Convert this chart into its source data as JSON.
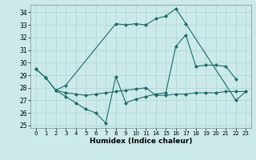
{
  "bg_color": "#cceaea",
  "grid_color": "#b0d8d8",
  "line_color": "#1a6b6b",
  "marker": "D",
  "markersize": 2.0,
  "linewidth": 0.8,
  "xlabel": "Humidex (Indice chaleur)",
  "xlim": [
    -0.5,
    21.5
  ],
  "ylim": [
    24.8,
    34.6
  ],
  "yticks": [
    25,
    26,
    27,
    28,
    29,
    30,
    31,
    32,
    33,
    34
  ],
  "xtick_positions": [
    0,
    1,
    2,
    3,
    4,
    5,
    6,
    7,
    8,
    9,
    10,
    11,
    12,
    13,
    14,
    15,
    16,
    17,
    18,
    19,
    20,
    21
  ],
  "xtick_labels": [
    "0",
    "1",
    "2",
    "3",
    "4",
    "5",
    "6",
    "7",
    "8",
    "9",
    "10",
    "11",
    "14",
    "15",
    "16",
    "17",
    "18",
    "19",
    "20",
    "21",
    "22",
    "23"
  ],
  "series": [
    {
      "x": [
        0,
        1,
        2,
        3,
        8,
        9,
        10,
        11,
        12,
        13,
        14,
        15,
        20,
        21
      ],
      "y": [
        29.5,
        28.8,
        27.8,
        28.2,
        33.1,
        33.0,
        33.1,
        33.0,
        33.5,
        33.7,
        34.3,
        33.1,
        27.0,
        27.7
      ]
    },
    {
      "x": [
        0,
        1,
        2,
        3,
        4,
        5,
        6,
        7,
        8,
        9,
        10,
        11,
        12,
        13,
        14,
        15,
        16,
        17,
        18,
        19,
        20
      ],
      "y": [
        29.5,
        28.8,
        27.8,
        27.3,
        26.8,
        26.3,
        26.0,
        25.2,
        28.9,
        26.8,
        27.1,
        27.3,
        27.5,
        27.6,
        31.3,
        32.2,
        29.7,
        29.8,
        29.8,
        29.7,
        28.7
      ]
    },
    {
      "x": [
        2,
        3,
        4,
        5,
        6,
        7,
        8,
        9,
        10,
        11,
        12,
        13,
        14,
        15,
        16,
        17,
        18,
        19,
        20,
        21
      ],
      "y": [
        27.8,
        27.6,
        27.5,
        27.4,
        27.5,
        27.6,
        27.7,
        27.8,
        27.9,
        28.0,
        27.4,
        27.4,
        27.5,
        27.5,
        27.6,
        27.6,
        27.6,
        27.7,
        27.7,
        27.7
      ]
    }
  ]
}
